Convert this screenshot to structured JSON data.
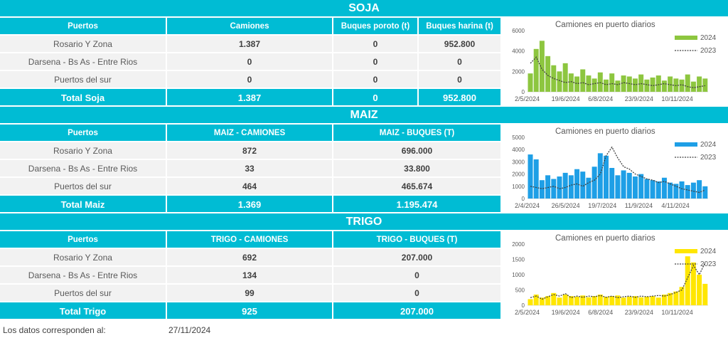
{
  "sections": [
    {
      "title": "SOJA",
      "headers": [
        "Puertos",
        "Camiones",
        "Buques poroto (t)",
        "Buques harina (t)"
      ],
      "rows": [
        [
          "Rosario Y Zona",
          "1.387",
          "0",
          "952.800"
        ],
        [
          "Darsena - Bs As - Entre Rios",
          "0",
          "0",
          "0"
        ],
        [
          "Puertos del sur",
          "0",
          "0",
          "0"
        ]
      ],
      "total": [
        "Total Soja",
        "1.387",
        "0",
        "952.800"
      ]
    },
    {
      "title": "MAIZ",
      "headers": [
        "Puertos",
        "MAIZ - CAMIONES",
        "MAIZ - BUQUES (T)"
      ],
      "rows": [
        [
          "Rosario Y Zona",
          "872",
          "696.000"
        ],
        [
          "Darsena - Bs As - Entre Rios",
          "33",
          "33.800"
        ],
        [
          "Puertos del sur",
          "464",
          "465.674"
        ]
      ],
      "total": [
        "Total Maiz",
        "1.369",
        "1.195.474"
      ]
    },
    {
      "title": "TRIGO",
      "headers": [
        "Puertos",
        "TRIGO - CAMIONES",
        "TRIGO - BUQUES (T)"
      ],
      "rows": [
        [
          "Rosario Y Zona",
          "692",
          "207.000"
        ],
        [
          "Darsena - Bs As - Entre Rios",
          "134",
          "0"
        ],
        [
          "Puertos del sur",
          "99",
          "0"
        ]
      ],
      "total": [
        "Total Trigo",
        "925",
        "207.000"
      ]
    }
  ],
  "footer": {
    "label": "Los datos corresponden al:",
    "date": "27/11/2024"
  },
  "chart_data": [
    {
      "type": "bar",
      "title": "Camiones en puerto diarios",
      "legend": [
        "2024",
        "2023"
      ],
      "legend_placement": "top-right",
      "colors": {
        "2024": "#8dc63f",
        "2023": "#404040"
      },
      "ylim": [
        0,
        6000
      ],
      "yticks": [
        "0",
        "2000",
        "4000",
        "6000"
      ],
      "xticks": [
        "2/5/2024",
        "19/6/2024",
        "6/8/2024",
        "23/9/2024",
        "10/11/2024"
      ],
      "series": [
        {
          "name": "2024",
          "values": [
            1800,
            4200,
            5000,
            3500,
            2600,
            2000,
            2800,
            1800,
            1500,
            2200,
            1600,
            1300,
            1900,
            1200,
            1800,
            1100,
            1600,
            1500,
            1300,
            1700,
            1200,
            1400,
            1600,
            1100,
            1500,
            1300,
            1200,
            1700,
            1000,
            1500,
            1300
          ]
        },
        {
          "name": "2023",
          "values": [
            2800,
            3400,
            2200,
            1600,
            1300,
            1100,
            900,
            1000,
            800,
            900,
            700,
            800,
            900,
            700,
            800,
            700,
            900,
            800,
            700,
            800,
            700,
            600,
            700,
            800,
            700,
            600,
            700,
            500,
            400,
            500,
            600
          ]
        }
      ]
    },
    {
      "type": "bar",
      "title": "Camiones en puerto diarios",
      "legend": [
        "2024",
        "2023"
      ],
      "legend_placement": "top-right",
      "colors": {
        "2024": "#1e9fe6",
        "2023": "#404040"
      },
      "ylim": [
        0,
        5000
      ],
      "yticks": [
        "0",
        "1000",
        "2000",
        "3000",
        "4000",
        "5000"
      ],
      "xticks": [
        "2/4/2024",
        "26/5/2024",
        "19/7/2024",
        "11/9/2024",
        "4/11/2024"
      ],
      "series": [
        {
          "name": "2024",
          "values": [
            3600,
            3200,
            1500,
            1900,
            1600,
            1800,
            2100,
            1900,
            2400,
            2200,
            1700,
            2600,
            3700,
            3500,
            2500,
            1900,
            2300,
            2100,
            1800,
            2000,
            1600,
            1500,
            1400,
            1700,
            1300,
            1200,
            1400,
            1100,
            1300,
            1500,
            1000
          ]
        },
        {
          "name": "2023",
          "values": [
            1000,
            900,
            800,
            900,
            1000,
            800,
            900,
            1100,
            1200,
            1000,
            1300,
            1500,
            2000,
            3500,
            4200,
            3300,
            2600,
            2400,
            2000,
            1800,
            1600,
            1500,
            1300,
            1400,
            1200,
            1000,
            800,
            700,
            600,
            500,
            700
          ]
        }
      ]
    },
    {
      "type": "bar",
      "title": "Camiones en puerto diarios",
      "legend": [
        "2024",
        "2023"
      ],
      "legend_placement": "top-right",
      "colors": {
        "2024": "#ffe600",
        "2023": "#404040"
      },
      "ylim": [
        0,
        2000
      ],
      "yticks": [
        "0",
        "500",
        "1000",
        "1500",
        "2000"
      ],
      "xticks": [
        "2/5/2024",
        "19/6/2024",
        "6/8/2024",
        "23/9/2024",
        "10/11/2024"
      ],
      "series": [
        {
          "name": "2024",
          "values": [
            200,
            350,
            250,
            300,
            400,
            250,
            350,
            300,
            280,
            320,
            260,
            300,
            350,
            280,
            300,
            320,
            250,
            280,
            300,
            260,
            280,
            300,
            250,
            350,
            400,
            450,
            600,
            1600,
            1400,
            1000,
            700
          ]
        },
        {
          "name": "2023",
          "values": [
            250,
            300,
            200,
            280,
            350,
            300,
            380,
            250,
            300,
            260,
            300,
            280,
            320,
            260,
            300,
            250,
            280,
            300,
            260,
            300,
            280,
            300,
            320,
            300,
            350,
            420,
            500,
            900,
            1300,
            1000,
            1400
          ]
        }
      ]
    }
  ]
}
